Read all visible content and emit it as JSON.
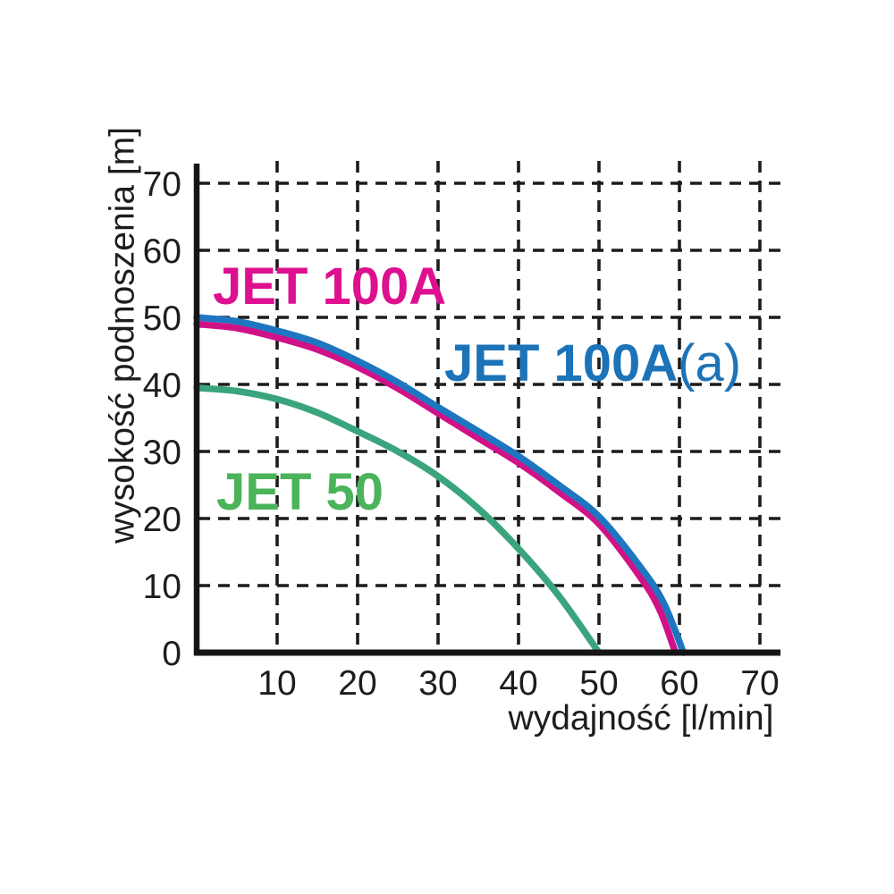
{
  "chart_data": {
    "type": "line",
    "title": "",
    "xlabel": "wydajność [l/min]",
    "ylabel": "wysokość podnoszenia [m]",
    "x_unit": "l/min",
    "y_unit": "m",
    "xlim": [
      0,
      73
    ],
    "ylim": [
      0,
      73.5
    ],
    "xticks": [
      10,
      20,
      30,
      40,
      50,
      60,
      70
    ],
    "yticks": [
      0,
      10,
      20,
      30,
      40,
      50,
      60,
      70
    ],
    "grid": "dashed",
    "grid_color": "#1c1c1c",
    "axis_color": "#151515",
    "tick_label_color": "#1d1d1d",
    "legend_position": "inline-curve-labels",
    "series": [
      {
        "name": "JET 50",
        "color": "#3aa57d",
        "label": {
          "text": "JET 50",
          "suffix": "",
          "color": "#4bb35a"
        },
        "points": [
          [
            0,
            39.5
          ],
          [
            5,
            39
          ],
          [
            10,
            37.8
          ],
          [
            15,
            35.8
          ],
          [
            20,
            33
          ],
          [
            25,
            30
          ],
          [
            30,
            26.3
          ],
          [
            35,
            21.5
          ],
          [
            40,
            15.5
          ],
          [
            45,
            8.5
          ],
          [
            50,
            0
          ]
        ]
      },
      {
        "name": "JET 100A",
        "color": "#d11187",
        "label": {
          "text": "JET 100A",
          "suffix": "",
          "color": "#dd1090"
        },
        "points": [
          [
            0,
            49
          ],
          [
            5,
            48.4
          ],
          [
            10,
            47
          ],
          [
            15,
            45.2
          ],
          [
            20,
            42.6
          ],
          [
            25,
            39.4
          ],
          [
            30,
            35.7
          ],
          [
            35,
            32
          ],
          [
            40,
            28.3
          ],
          [
            45,
            24
          ],
          [
            50,
            19.2
          ],
          [
            55,
            11.5
          ],
          [
            57.5,
            6.5
          ],
          [
            59.5,
            0
          ]
        ]
      },
      {
        "name": "JET 100A(a)",
        "color": "#1e76c0",
        "label": {
          "text": "JET 100A",
          "suffix": "(a)",
          "color": "#1c73b8"
        },
        "points": [
          [
            0,
            50
          ],
          [
            5,
            49.4
          ],
          [
            10,
            48
          ],
          [
            15,
            46.2
          ],
          [
            20,
            43.5
          ],
          [
            25,
            40.3
          ],
          [
            30,
            36.6
          ],
          [
            35,
            33
          ],
          [
            40,
            29.3
          ],
          [
            45,
            25
          ],
          [
            50,
            20.3
          ],
          [
            55,
            13
          ],
          [
            58,
            7.5
          ],
          [
            60.5,
            0
          ]
        ]
      }
    ]
  }
}
